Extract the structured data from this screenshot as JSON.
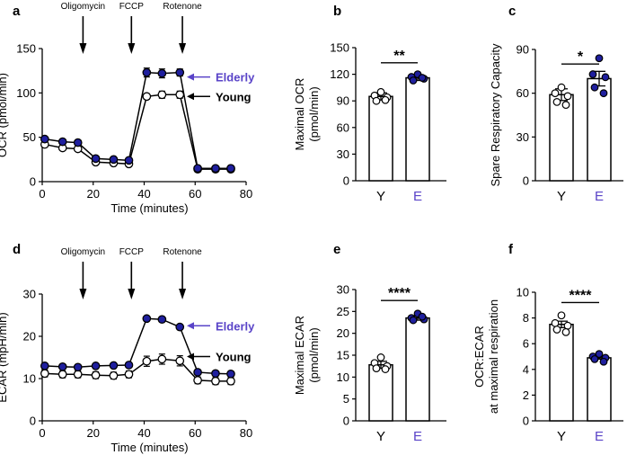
{
  "colors": {
    "young": "#000000",
    "elderly": "#1f1f9e",
    "elderly_text": "#5a44c8",
    "axis": "#000000",
    "bg": "#ffffff"
  },
  "chart_data": [
    {
      "panel": "a",
      "type": "line",
      "xlabel": "Time (minutes)",
      "ylabel": "OCR (pmol/min)",
      "xlim": [
        0,
        80
      ],
      "ylim": [
        0,
        150
      ],
      "xticks": [
        "0",
        "20",
        "40",
        "60",
        "80"
      ],
      "yticks": [
        "0",
        "50",
        "100",
        "150"
      ],
      "x": [
        1,
        8,
        14,
        21,
        28,
        34,
        41,
        47,
        54,
        61,
        68,
        74
      ],
      "series": [
        {
          "name": "Elderly",
          "color": "elderly",
          "filled": true,
          "values": [
            48,
            45,
            44,
            26,
            25,
            24,
            123,
            122,
            123,
            15,
            15,
            15
          ],
          "err": [
            2,
            2,
            2,
            2,
            2,
            2,
            5,
            5,
            4,
            1,
            1,
            1
          ]
        },
        {
          "name": "Young",
          "color": "young",
          "filled": false,
          "values": [
            42,
            38,
            37,
            22,
            21,
            20,
            96,
            98,
            98,
            14,
            14,
            14
          ],
          "err": [
            2,
            2,
            2,
            1,
            1,
            1,
            3,
            4,
            4,
            1,
            1,
            1
          ]
        }
      ],
      "injections": [
        {
          "label": "Oligomycin",
          "x": 16
        },
        {
          "label": "FCCP",
          "x": 35
        },
        {
          "label": "Rotenone",
          "x": 55
        }
      ],
      "legend": [
        {
          "label": "Elderly",
          "color": "elderly",
          "y": 118
        },
        {
          "label": "Young",
          "color": "young",
          "y": 96
        }
      ]
    },
    {
      "panel": "b",
      "type": "bar",
      "ylabel": "Maximal OCR\n(pmol/min)",
      "categories": [
        "Y",
        "E"
      ],
      "category_colors": [
        "young",
        "elderly"
      ],
      "values": [
        95,
        116
      ],
      "err": [
        4,
        3
      ],
      "points": [
        [
          100,
          96,
          94,
          90,
          91
        ],
        [
          120,
          117,
          115,
          113,
          116
        ]
      ],
      "ylim": [
        0,
        150
      ],
      "yticks": [
        "0",
        "30",
        "60",
        "90",
        "120",
        "150"
      ],
      "significance": "**",
      "sig_y": 133
    },
    {
      "panel": "c",
      "type": "bar",
      "ylabel": "Spare Respiratory Capacity",
      "categories": [
        "Y",
        "E"
      ],
      "category_colors": [
        "young",
        "elderly"
      ],
      "values": [
        59,
        70
      ],
      "err": [
        4,
        5
      ],
      "points": [
        [
          64,
          60,
          58,
          54,
          52
        ],
        [
          84,
          73,
          71,
          64,
          60
        ]
      ],
      "ylim": [
        0,
        90
      ],
      "yticks": [
        "0",
        "30",
        "60",
        "90"
      ],
      "significance": "*",
      "sig_y": 80
    },
    {
      "panel": "d",
      "type": "line",
      "xlabel": "Time (minutes)",
      "ylabel": "ECAR (mpH/min)",
      "xlim": [
        0,
        80
      ],
      "ylim": [
        0,
        30
      ],
      "xticks": [
        "0",
        "20",
        "40",
        "60",
        "80"
      ],
      "yticks": [
        "0",
        "10",
        "20",
        "30"
      ],
      "x": [
        1,
        8,
        14,
        21,
        28,
        34,
        41,
        47,
        54,
        61,
        68,
        74
      ],
      "series": [
        {
          "name": "Elderly",
          "color": "elderly",
          "filled": true,
          "values": [
            13,
            12.8,
            12.7,
            13,
            13.1,
            13.2,
            24.2,
            24,
            22.2,
            11.5,
            11.2,
            11.1
          ],
          "err": [
            0.4,
            0.4,
            0.4,
            0.4,
            0.4,
            0.4,
            0.4,
            0.4,
            0.5,
            0.5,
            0.4,
            0.4
          ]
        },
        {
          "name": "Young",
          "color": "young",
          "filled": false,
          "values": [
            11.2,
            11,
            11,
            10.8,
            10.7,
            11,
            14.1,
            14.6,
            14.2,
            9.6,
            9.4,
            9.4
          ],
          "err": [
            0.8,
            0.8,
            0.8,
            0.8,
            0.8,
            0.8,
            1.2,
            1.2,
            1.2,
            0.8,
            0.8,
            0.8
          ]
        }
      ],
      "injections": [
        {
          "label": "Oligomycin",
          "x": 16
        },
        {
          "label": "FCCP",
          "x": 35
        },
        {
          "label": "Rotenone",
          "x": 55
        }
      ],
      "legend": [
        {
          "label": "Elderly",
          "color": "elderly",
          "y": 22.5
        },
        {
          "label": "Young",
          "color": "young",
          "y": 15.2
        }
      ]
    },
    {
      "panel": "e",
      "type": "bar",
      "ylabel": "Maximal ECAR\n(pmol/min)",
      "categories": [
        "Y",
        "E"
      ],
      "category_colors": [
        "young",
        "elderly"
      ],
      "values": [
        12.8,
        23.5
      ],
      "err": [
        0.8,
        0.5
      ],
      "points": [
        [
          14.5,
          13.2,
          12.5,
          12,
          11.8
        ],
        [
          24.5,
          23.5,
          23.2,
          23,
          23.8
        ]
      ],
      "ylim": [
        0,
        30
      ],
      "yticks": [
        "0",
        "5",
        "10",
        "15",
        "20",
        "25",
        "30"
      ],
      "significance": "****",
      "sig_y": 27.5
    },
    {
      "panel": "f",
      "type": "bar",
      "ylabel": "OCR:ECAR\nat maximal respiration",
      "categories": [
        "Y",
        "E"
      ],
      "category_colors": [
        "young",
        "elderly"
      ],
      "values": [
        7.5,
        4.9
      ],
      "err": [
        0.25,
        0.1
      ],
      "points": [
        [
          8.2,
          7.6,
          7.4,
          7.1,
          6.9
        ],
        [
          5.2,
          5.0,
          4.9,
          4.8,
          4.6
        ]
      ],
      "ylim": [
        0,
        10
      ],
      "yticks": [
        "0",
        "2",
        "4",
        "6",
        "8",
        "10"
      ],
      "significance": "****",
      "sig_y": 9.2
    }
  ]
}
